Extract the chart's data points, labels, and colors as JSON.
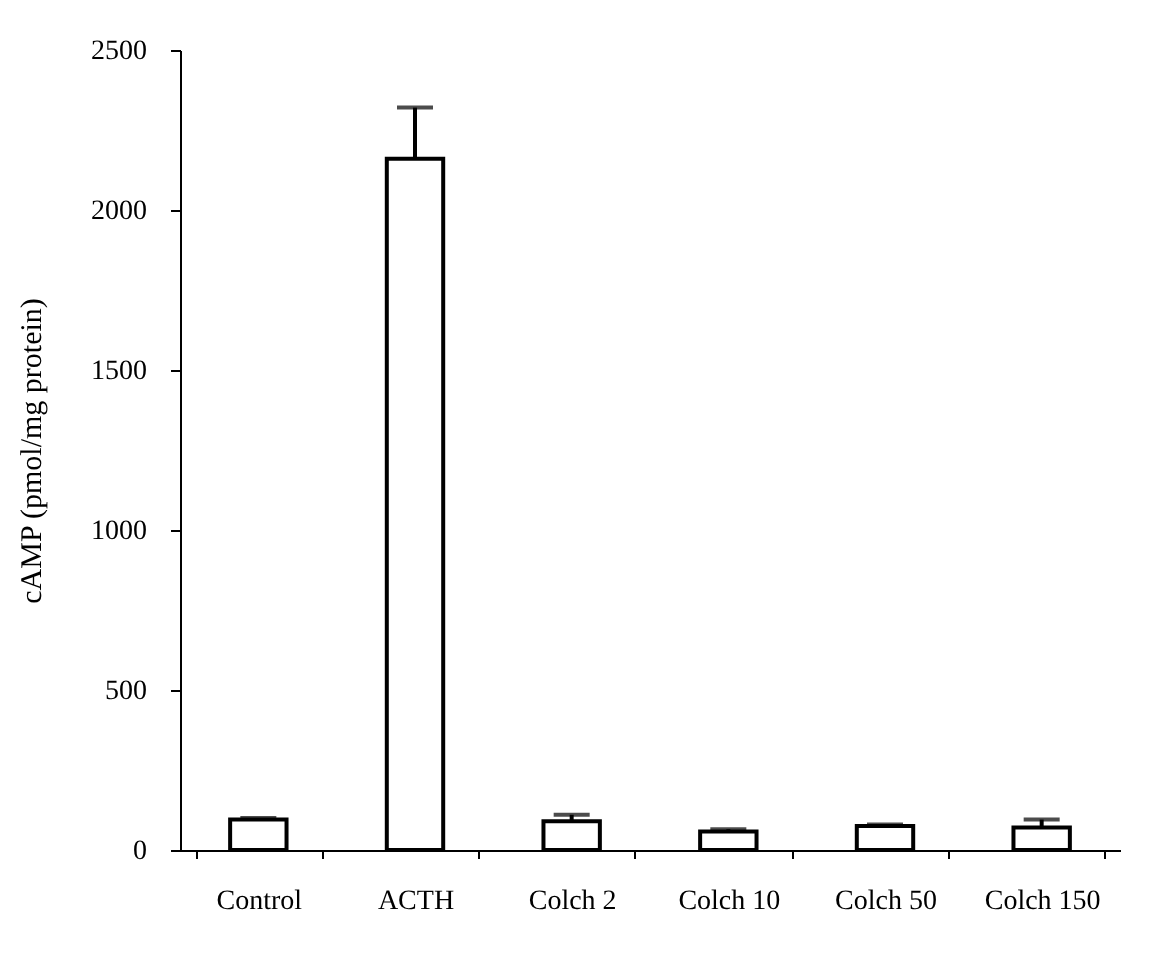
{
  "chart_data": {
    "type": "bar",
    "ylabel": "cAMP (pmol/mg protein)",
    "categories": [
      "Control",
      "ACTH",
      "Colch 2",
      "Colch 10",
      "Colch 50",
      "Colch 150"
    ],
    "series": [
      {
        "color": "#ffffff",
        "values": [
          95,
          2160,
          90,
          58,
          75,
          70
        ],
        "errors": [
          [
            95,
            100
          ],
          [
            2160,
            2320
          ],
          [
            90,
            110
          ],
          [
            58,
            65
          ],
          [
            75,
            80
          ],
          [
            70,
            95
          ]
        ]
      }
    ],
    "ylim": [
      0,
      2500
    ],
    "yticks": [
      0,
      500,
      1000,
      1500,
      2000,
      2500
    ],
    "grid": false
  }
}
